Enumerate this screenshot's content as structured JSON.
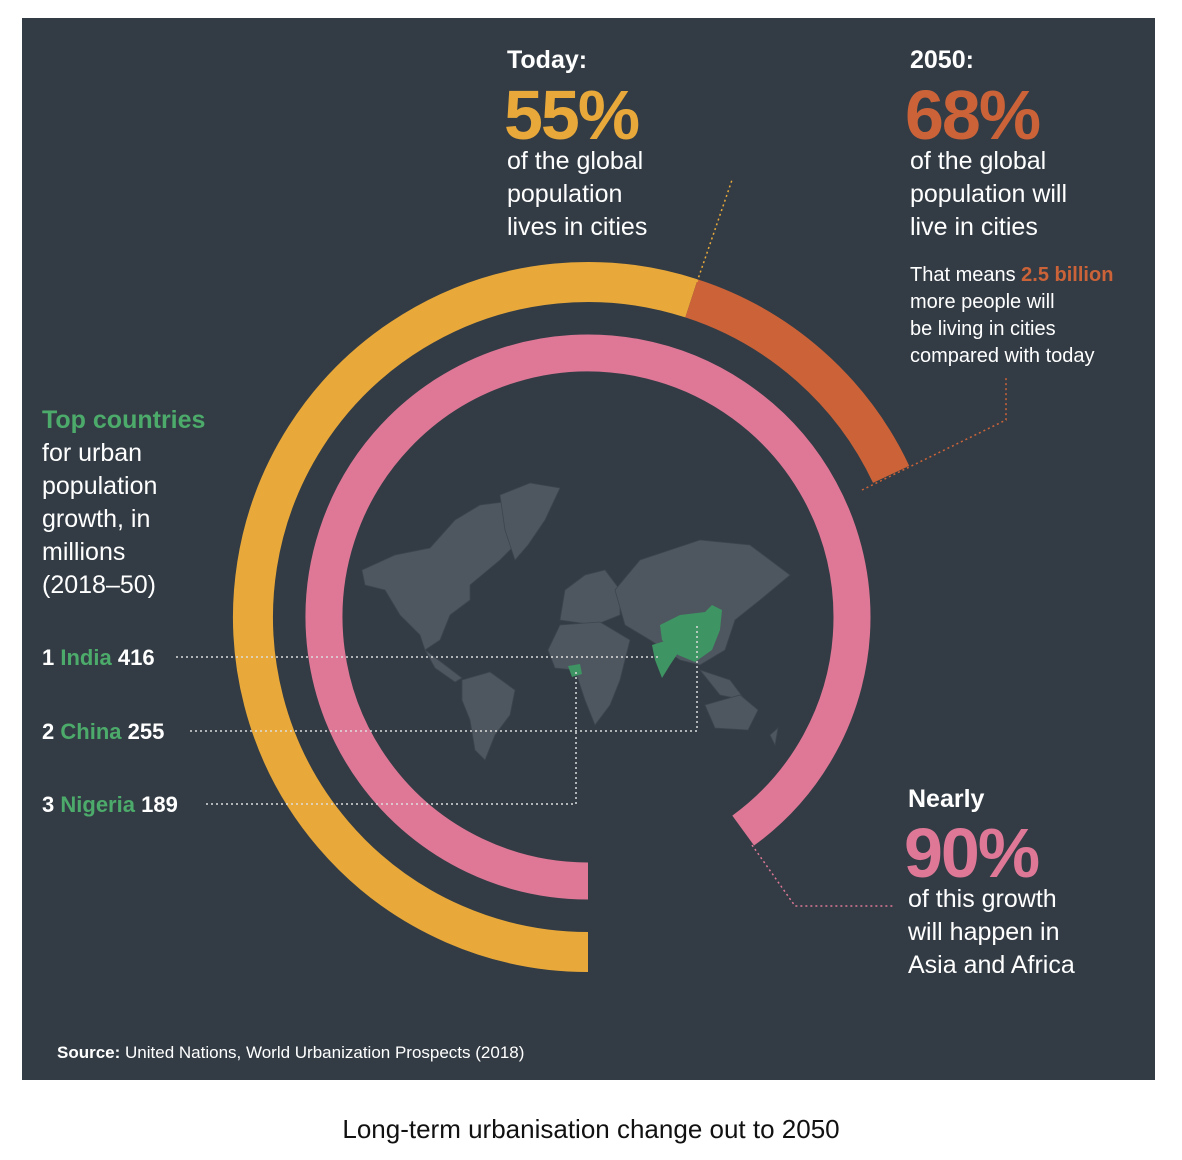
{
  "colors": {
    "background": "#333c45",
    "today": "#e9a93a",
    "future": "#cc6338",
    "growth": "#de7896",
    "highlight": "#4caa6a",
    "map": "#4e5660"
  },
  "today": {
    "label": "Today:",
    "value": "55%",
    "text": [
      "of the global",
      "population",
      "lives in cities"
    ],
    "percent": 55
  },
  "future": {
    "label": "2050:",
    "value": "68%",
    "text": [
      "of the global",
      "population will",
      "live in cities"
    ],
    "percent": 68,
    "note_prefix": "That means ",
    "note_highlight": "2.5 billion",
    "note_lines": [
      "more people will",
      "be living in cities",
      "compared with today"
    ]
  },
  "growth": {
    "label": "Nearly",
    "value": "90%",
    "text": [
      "of this growth",
      "will happen in",
      "Asia and Africa"
    ],
    "percent": 90
  },
  "countries": {
    "title_highlight": "Top countries",
    "title_lines": [
      "for urban",
      "population",
      "growth, in",
      "millions",
      "(2018–50)"
    ],
    "items": [
      {
        "rank": "1",
        "name": "India",
        "value": "416"
      },
      {
        "rank": "2",
        "name": "China",
        "value": "255"
      },
      {
        "rank": "3",
        "name": "Nigeria",
        "value": "189"
      }
    ]
  },
  "source": {
    "label": "Source:",
    "text": " United Nations, World Urbanization Prospects (2018)"
  },
  "caption": "Long-term urbanisation change out to 2050"
}
